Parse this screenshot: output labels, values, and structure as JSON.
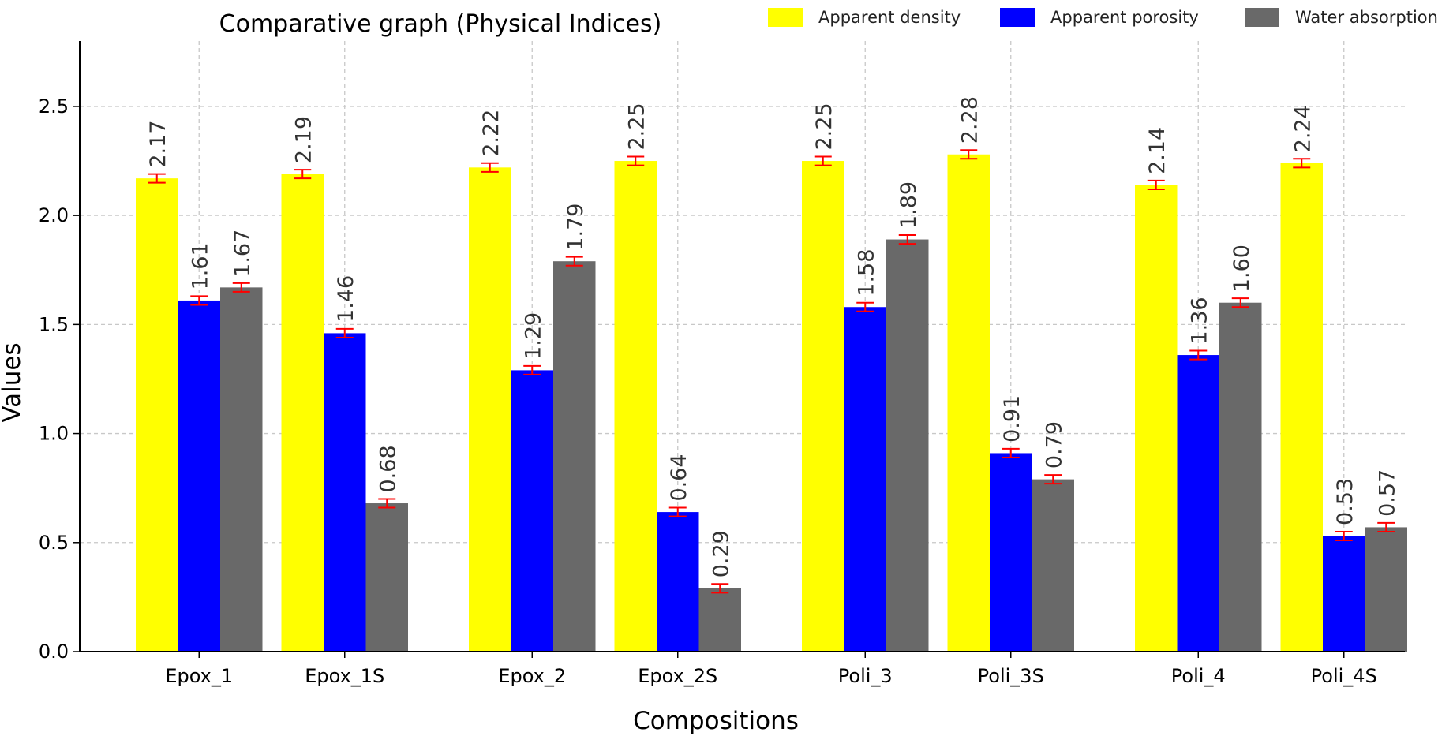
{
  "chart_data": {
    "type": "bar",
    "title": "Comparative graph (Physical Indices)",
    "xlabel": "Compositions",
    "ylabel": "Values",
    "ylim": [
      0,
      2.8
    ],
    "yticks": [
      0.0,
      0.5,
      1.0,
      1.5,
      2.0,
      2.5
    ],
    "yticks_labels": [
      "0.0",
      "0.5",
      "1.0",
      "1.5",
      "2.0",
      "2.5"
    ],
    "grid": true,
    "legend_position": "top-right",
    "categories": [
      "Epox_1",
      "Epox_1S",
      "Epox_2",
      "Epox_2S",
      "Poli_3",
      "Poli_3S",
      "Poli_4",
      "Poli_4S"
    ],
    "series": [
      {
        "name": "Apparent density",
        "color": "#ffff00",
        "values": [
          2.17,
          2.19,
          2.22,
          2.25,
          2.25,
          2.28,
          2.14,
          2.24
        ],
        "labels": [
          "2.17",
          "2.19",
          "2.22",
          "2.25",
          "2.25",
          "2.28",
          "2.14",
          "2.24"
        ],
        "error": [
          0.02,
          0.02,
          0.02,
          0.02,
          0.02,
          0.02,
          0.02,
          0.02
        ]
      },
      {
        "name": "Apparent porosity",
        "color": "#0000ff",
        "values": [
          1.61,
          1.46,
          1.29,
          0.64,
          1.58,
          0.91,
          1.36,
          0.53
        ],
        "labels": [
          "1.61",
          "1.46",
          "1.29",
          "0.64",
          "1.58",
          "0.91",
          "1.36",
          "0.53"
        ],
        "error": [
          0.02,
          0.02,
          0.02,
          0.02,
          0.02,
          0.02,
          0.02,
          0.02
        ]
      },
      {
        "name": "Water absorption",
        "color": "#696969",
        "values": [
          1.67,
          0.68,
          1.79,
          0.29,
          1.89,
          0.79,
          1.6,
          0.57
        ],
        "labels": [
          "1.67",
          "0.68",
          "1.79",
          "0.29",
          "1.89",
          "0.79",
          "1.60",
          "0.57"
        ],
        "error": [
          0.02,
          0.02,
          0.02,
          0.02,
          0.02,
          0.02,
          0.02,
          0.02
        ]
      }
    ],
    "error_bar_color": "#ff0000"
  }
}
